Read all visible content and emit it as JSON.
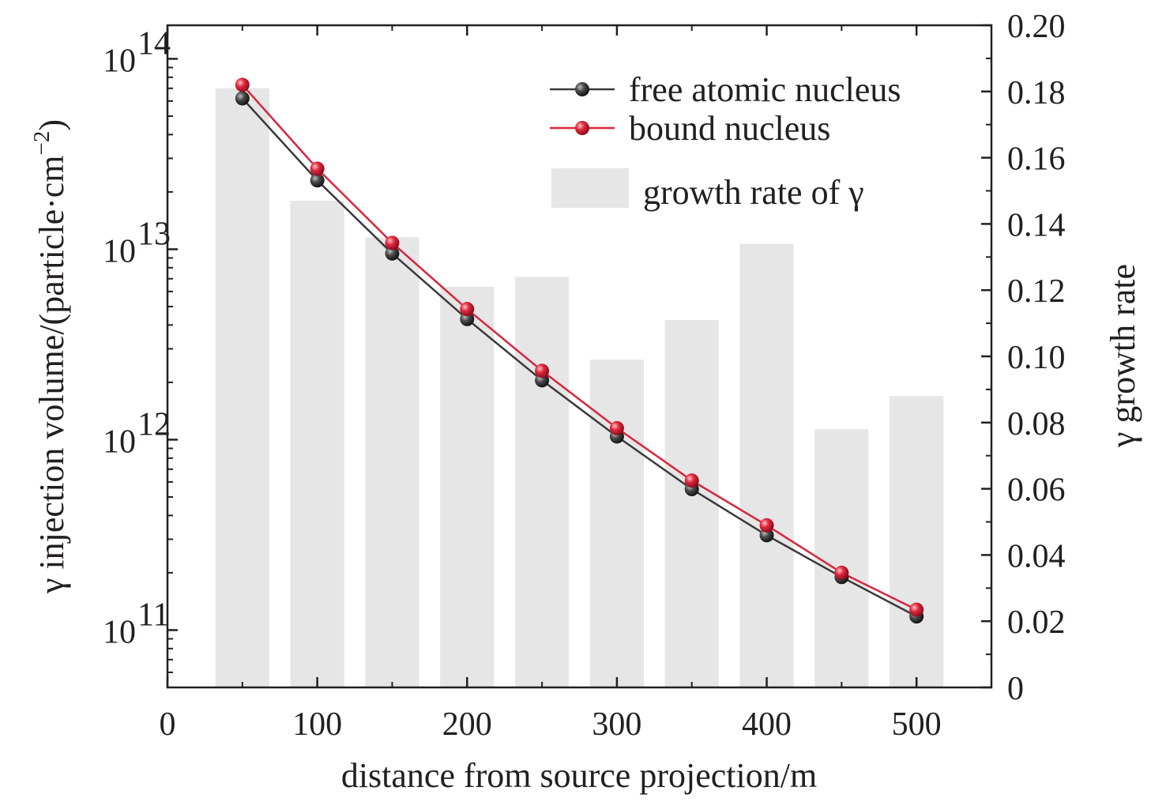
{
  "chart_data": {
    "type": "bar+line",
    "xlabel": "distance from source projection/m",
    "ylabel_left": "γ injection volume/(particle·cm",
    "ylabel_left_exp": "−2",
    "ylabel_left_end": ")",
    "ylabel_right": "γ growth rate",
    "xlim": [
      0,
      550
    ],
    "x_ticks": [
      0,
      100,
      200,
      300,
      400,
      500
    ],
    "x_tick_labels": [
      "0",
      "100",
      "200",
      "300",
      "400",
      "500"
    ],
    "ylim_left": [
      50000000000.0,
      150000000000000.0
    ],
    "y_scale_left": "log",
    "y_ticks_left": [
      {
        "base": "10",
        "exp": "11",
        "value": 100000000000.0
      },
      {
        "base": "10",
        "exp": "12",
        "value": 1000000000000.0
      },
      {
        "base": "10",
        "exp": "13",
        "value": 10000000000000.0
      },
      {
        "base": "10",
        "exp": "14",
        "value": 100000000000000.0
      }
    ],
    "ylim_right": [
      0,
      0.2
    ],
    "y_ticks_right": [
      0,
      0.02,
      0.04,
      0.06,
      0.08,
      0.1,
      0.12,
      0.14,
      0.16,
      0.18,
      0.2
    ],
    "y_tick_labels_right": [
      "0",
      "0.02",
      "0.04",
      "0.06",
      "0.08",
      "0.10",
      "0.12",
      "0.14",
      "0.16",
      "0.18",
      "0.20"
    ],
    "legend_position": "top-right",
    "series": [
      {
        "name": "free atomic nucleus",
        "kind": "line",
        "axis": "left",
        "color": "#3a3a3a",
        "x": [
          50,
          100,
          150,
          200,
          250,
          300,
          350,
          400,
          450,
          500
        ],
        "values": [
          62000000000000.0,
          23000000000000.0,
          9500000000000.0,
          4300000000000.0,
          2050000000000.0,
          1040000000000.0,
          550000000000.0,
          315000000000.0,
          190000000000.0,
          118000000000.0
        ]
      },
      {
        "name": "bound nucleus",
        "kind": "line",
        "axis": "left",
        "color": "#d7263d",
        "x": [
          50,
          100,
          150,
          200,
          250,
          300,
          350,
          400,
          450,
          500
        ],
        "values": [
          73000000000000.0,
          26500000000000.0,
          10800000000000.0,
          4850000000000.0,
          2300000000000.0,
          1150000000000.0,
          610000000000.0,
          355000000000.0,
          200000000000.0,
          128000000000.0
        ]
      },
      {
        "name": "growth rate of γ",
        "kind": "bar",
        "axis": "right",
        "color": "#e6e6e6",
        "x": [
          50,
          100,
          150,
          200,
          250,
          300,
          350,
          400,
          450,
          500
        ],
        "values": [
          0.181,
          0.147,
          0.136,
          0.121,
          0.124,
          0.099,
          0.111,
          0.134,
          0.078,
          0.088
        ]
      }
    ]
  }
}
